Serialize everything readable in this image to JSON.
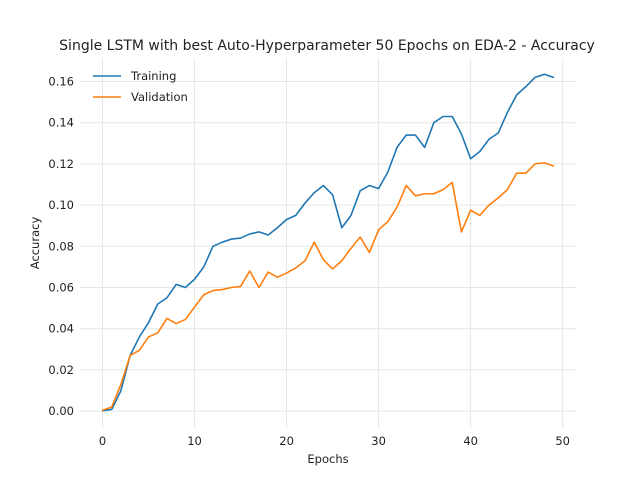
{
  "chart_data": {
    "type": "line",
    "title": "Single LSTM with best Auto-Hyperparameter 50 Epochs on EDA-2 - Accuracy",
    "xlabel": "Epochs",
    "ylabel": "Accuracy",
    "xlim": [
      -2.45,
      51.45
    ],
    "ylim": [
      -0.0082,
      0.1714
    ],
    "xticks": [
      0,
      10,
      20,
      30,
      40,
      50
    ],
    "yticks": [
      0.0,
      0.02,
      0.04,
      0.06,
      0.08,
      0.1,
      0.12,
      0.14,
      0.16
    ],
    "ytick_labels": [
      "0.00",
      "0.02",
      "0.04",
      "0.06",
      "0.08",
      "0.10",
      "0.12",
      "0.14",
      "0.16"
    ],
    "grid": true,
    "legend_position": "top-left",
    "x": [
      0,
      1,
      2,
      3,
      4,
      5,
      6,
      7,
      8,
      9,
      10,
      11,
      12,
      13,
      14,
      15,
      16,
      17,
      18,
      19,
      20,
      21,
      22,
      23,
      24,
      25,
      26,
      27,
      28,
      29,
      30,
      31,
      32,
      33,
      34,
      35,
      36,
      37,
      38,
      39,
      40,
      41,
      42,
      43,
      44,
      45,
      46,
      47,
      48,
      49
    ],
    "series": [
      {
        "name": "Training",
        "color": "#1f77b4",
        "values": [
          0.0002,
          0.0008,
          0.01,
          0.027,
          0.036,
          0.043,
          0.052,
          0.055,
          0.0615,
          0.06,
          0.064,
          0.07,
          0.08,
          0.082,
          0.0835,
          0.084,
          0.086,
          0.087,
          0.0855,
          0.089,
          0.093,
          0.095,
          0.101,
          0.106,
          0.1095,
          0.105,
          0.089,
          0.095,
          0.107,
          0.1095,
          0.108,
          0.116,
          0.128,
          0.134,
          0.134,
          0.128,
          0.14,
          0.143,
          0.143,
          0.1345,
          0.1225,
          0.126,
          0.132,
          0.135,
          0.145,
          0.1535,
          0.1575,
          0.162,
          0.1635,
          0.162
        ]
      },
      {
        "name": "Validation",
        "color": "#ff7f0e",
        "values": [
          0.0004,
          0.002,
          0.013,
          0.027,
          0.0295,
          0.036,
          0.038,
          0.045,
          0.0425,
          0.0445,
          0.0505,
          0.0565,
          0.0585,
          0.059,
          0.06,
          0.0605,
          0.068,
          0.06,
          0.0675,
          0.065,
          0.067,
          0.0695,
          0.073,
          0.082,
          0.0735,
          0.069,
          0.073,
          0.079,
          0.0845,
          0.077,
          0.088,
          0.092,
          0.099,
          0.1095,
          0.1045,
          0.1055,
          0.1055,
          0.1075,
          0.111,
          0.087,
          0.0975,
          0.095,
          0.1,
          0.1035,
          0.1075,
          0.1155,
          0.1155,
          0.12,
          0.1205,
          0.119
        ]
      }
    ]
  }
}
